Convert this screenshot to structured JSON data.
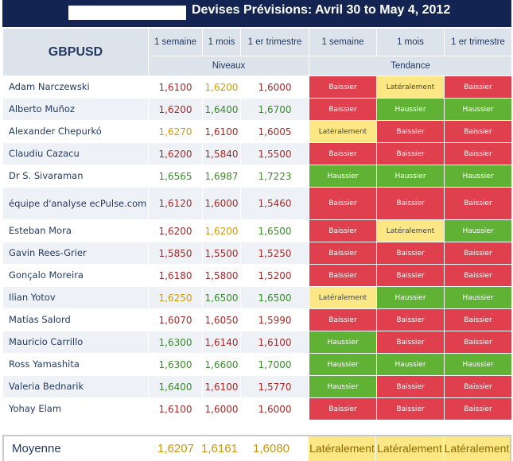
{
  "title": {
    "text": "Devises Prévisions: Avril 30 to May 4, 2012"
  },
  "header": {
    "pair": "GBPUSD",
    "col_1w": "1 semaine",
    "col_1m": "1 mois",
    "col_1q": "1 er trimestre",
    "group_levels": "Niveaux",
    "group_trend": "Tendance"
  },
  "colors": {
    "baissier": "#e0404d",
    "haussier": "#5fb234",
    "lateral": "#fbe884",
    "header_bar": "#132452"
  },
  "rows": [
    {
      "name": "Adam Narczewski",
      "levels": [
        "1,6100",
        "1,6200",
        "1,6000"
      ],
      "level_dir": [
        "down",
        "flat",
        "down"
      ],
      "trends": [
        "Baissier",
        "Latéralement",
        "Baissier"
      ],
      "trend_dir": [
        "down",
        "flat",
        "down"
      ]
    },
    {
      "name": "Alberto Muñoz",
      "levels": [
        "1,6200",
        "1,6400",
        "1,6700"
      ],
      "level_dir": [
        "down",
        "up",
        "up"
      ],
      "trends": [
        "Baissier",
        "Haussier",
        "Haussier"
      ],
      "trend_dir": [
        "down",
        "up",
        "up"
      ]
    },
    {
      "name": "Alexander Chepurkó",
      "levels": [
        "1,6270",
        "1,6100",
        "1,6005"
      ],
      "level_dir": [
        "flat",
        "down",
        "down"
      ],
      "trends": [
        "Latéralement",
        "Baissier",
        "Baissier"
      ],
      "trend_dir": [
        "flat",
        "down",
        "down"
      ]
    },
    {
      "name": "Claudiu Cazacu",
      "levels": [
        "1,6200",
        "1,5840",
        "1,5500"
      ],
      "level_dir": [
        "down",
        "down",
        "down"
      ],
      "trends": [
        "Baissier",
        "Baissier",
        "Baissier"
      ],
      "trend_dir": [
        "down",
        "down",
        "down"
      ]
    },
    {
      "name": "Dr S. Sivaraman",
      "levels": [
        "1,6565",
        "1,6987",
        "1,7223"
      ],
      "level_dir": [
        "up",
        "up",
        "up"
      ],
      "trends": [
        "Haussier",
        "Haussier",
        "Haussier"
      ],
      "trend_dir": [
        "up",
        "up",
        "up"
      ]
    },
    {
      "name": "équipe d'analyse ecPulse.com",
      "levels": [
        "1,6120",
        "1,6000",
        "1,5460"
      ],
      "level_dir": [
        "down",
        "down",
        "down"
      ],
      "trends": [
        "Baissier",
        "Baissier",
        "Baissier"
      ],
      "trend_dir": [
        "down",
        "down",
        "down"
      ],
      "tall": true
    },
    {
      "name": "Esteban Mora",
      "levels": [
        "1,6200",
        "1,6200",
        "1,6500"
      ],
      "level_dir": [
        "down",
        "flat",
        "up"
      ],
      "trends": [
        "Baissier",
        "Latéralement",
        "Haussier"
      ],
      "trend_dir": [
        "down",
        "flat",
        "up"
      ]
    },
    {
      "name": "Gavin Rees-Grier",
      "levels": [
        "1,5850",
        "1,5500",
        "1,5250"
      ],
      "level_dir": [
        "down",
        "down",
        "down"
      ],
      "trends": [
        "Baissier",
        "Baissier",
        "Baissier"
      ],
      "trend_dir": [
        "down",
        "down",
        "down"
      ]
    },
    {
      "name": "Gonçalo Moreira",
      "levels": [
        "1,6180",
        "1,5800",
        "1,5200"
      ],
      "level_dir": [
        "down",
        "down",
        "down"
      ],
      "trends": [
        "Baissier",
        "Baissier",
        "Baissier"
      ],
      "trend_dir": [
        "down",
        "down",
        "down"
      ]
    },
    {
      "name": "Ilian Yotov",
      "levels": [
        "1,6250",
        "1,6500",
        "1,6500"
      ],
      "level_dir": [
        "flat",
        "up",
        "up"
      ],
      "trends": [
        "Latéralement",
        "Haussier",
        "Haussier"
      ],
      "trend_dir": [
        "flat",
        "up",
        "up"
      ]
    },
    {
      "name": "Matías Salord",
      "levels": [
        "1,6070",
        "1,6050",
        "1,5990"
      ],
      "level_dir": [
        "down",
        "down",
        "down"
      ],
      "trends": [
        "Baissier",
        "Baissier",
        "Baissier"
      ],
      "trend_dir": [
        "down",
        "down",
        "down"
      ]
    },
    {
      "name": "Mauricio Carrillo",
      "levels": [
        "1,6300",
        "1,6140",
        "1,6100"
      ],
      "level_dir": [
        "up",
        "down",
        "down"
      ],
      "trends": [
        "Haussier",
        "Baissier",
        "Baissier"
      ],
      "trend_dir": [
        "up",
        "down",
        "down"
      ]
    },
    {
      "name": "Ross Yamashita",
      "levels": [
        "1,6300",
        "1,6600",
        "1,7000"
      ],
      "level_dir": [
        "up",
        "up",
        "up"
      ],
      "trends": [
        "Haussier",
        "Haussier",
        "Haussier"
      ],
      "trend_dir": [
        "up",
        "up",
        "up"
      ]
    },
    {
      "name": "Valeria Bednarik",
      "levels": [
        "1,6400",
        "1,6100",
        "1,5770"
      ],
      "level_dir": [
        "up",
        "down",
        "down"
      ],
      "trends": [
        "Haussier",
        "Baissier",
        "Baissier"
      ],
      "trend_dir": [
        "up",
        "down",
        "down"
      ]
    },
    {
      "name": "Yohay Elam",
      "levels": [
        "1,6100",
        "1,6000",
        "1,6000"
      ],
      "level_dir": [
        "down",
        "down",
        "down"
      ],
      "trends": [
        "Baissier",
        "Baissier",
        "Baissier"
      ],
      "trend_dir": [
        "down",
        "down",
        "down"
      ]
    }
  ],
  "average": {
    "label": "Moyenne",
    "levels": [
      "1,6207",
      "1,6161",
      "1,6080"
    ],
    "trends": [
      "Latéralement",
      "Latéralement",
      "Latéralement"
    ]
  }
}
